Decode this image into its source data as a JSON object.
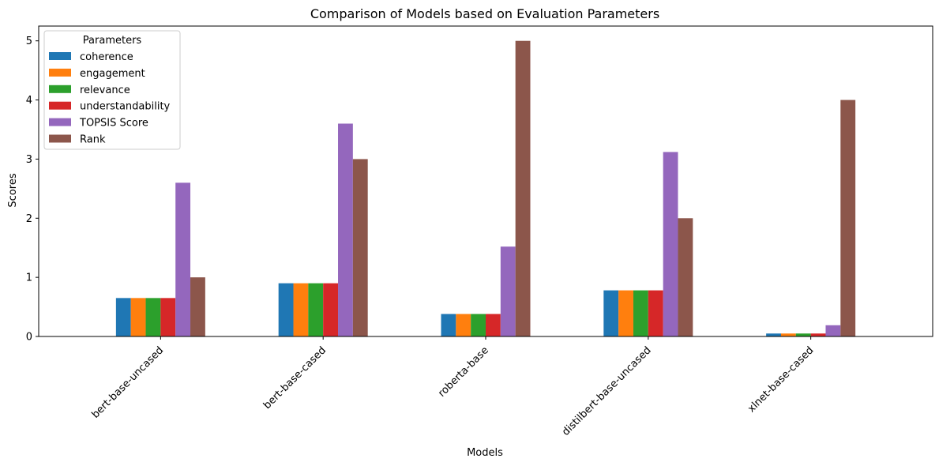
{
  "chart_data": {
    "type": "bar",
    "title": "Comparison of Models based on Evaluation Parameters",
    "xlabel": "Models",
    "ylabel": "Scores",
    "ylim": [
      0,
      5.25
    ],
    "yticks": [
      0,
      1,
      2,
      3,
      4,
      5
    ],
    "grid": false,
    "legend": {
      "title": "Parameters",
      "placement": "top-left"
    },
    "categories": [
      "bert-base-uncased",
      "bert-base-cased",
      "roberta-base",
      "distilbert-base-uncased",
      "xlnet-base-cased"
    ],
    "series": [
      {
        "name": "coherence",
        "color": "#1f77b4",
        "values": [
          0.65,
          0.9,
          0.38,
          0.78,
          0.05
        ]
      },
      {
        "name": "engagement",
        "color": "#ff7f0e",
        "values": [
          0.65,
          0.9,
          0.38,
          0.78,
          0.05
        ]
      },
      {
        "name": "relevance",
        "color": "#2ca02c",
        "values": [
          0.65,
          0.9,
          0.38,
          0.78,
          0.05
        ]
      },
      {
        "name": "understandability",
        "color": "#d62728",
        "values": [
          0.65,
          0.9,
          0.38,
          0.78,
          0.05
        ]
      },
      {
        "name": "TOPSIS Score",
        "color": "#9467bd",
        "values": [
          2.6,
          3.6,
          1.52,
          3.12,
          0.19
        ]
      },
      {
        "name": "Rank",
        "color": "#8c564b",
        "values": [
          1,
          3,
          5,
          2,
          4
        ]
      }
    ]
  }
}
